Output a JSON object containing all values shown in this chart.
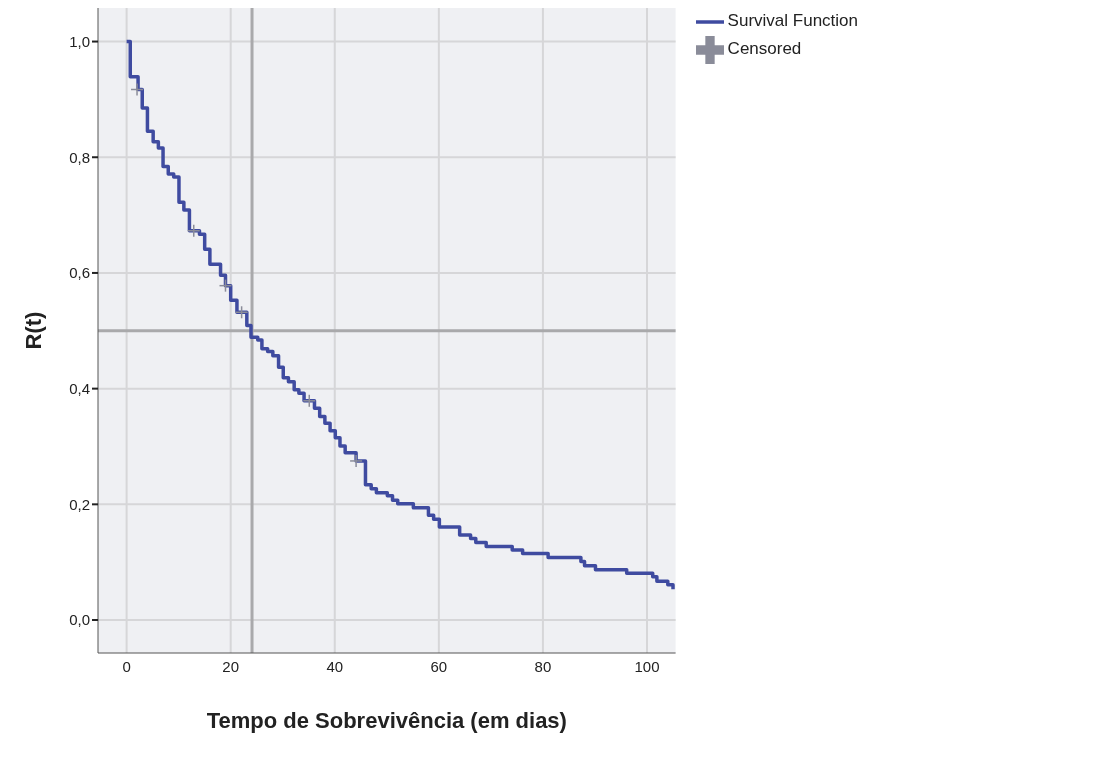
{
  "chart_data": {
    "type": "step",
    "xlabel": "Tempo de Sobrevivência (em dias)",
    "ylabel": "R(t)",
    "xlim": [
      -5.5,
      105.5
    ],
    "ylim": [
      -0.057,
      1.058
    ],
    "xticks": [
      0,
      20,
      40,
      60,
      80,
      100
    ],
    "yticks": [
      {
        "value": 0,
        "label": "0,0"
      },
      {
        "value": 0.2,
        "label": "0,2"
      },
      {
        "value": 0.4,
        "label": "0,4"
      },
      {
        "value": 0.6,
        "label": "0,6"
      },
      {
        "value": 0.8,
        "label": "0,8"
      },
      {
        "value": 1,
        "label": "1,0"
      }
    ],
    "grid": true,
    "legend": "top right",
    "series": [
      {
        "name": "Survival Function",
        "color": "#3f4ba0",
        "x": [
          0,
          0.7,
          2.2,
          3.0,
          4.0,
          5.1,
          6.1,
          7.0,
          8.0,
          9.05,
          10.06,
          11.0,
          12.07,
          14.0,
          15.0,
          16.0,
          18.05,
          19.0,
          20.0,
          21.2,
          23.1,
          23.9,
          25.2,
          26.0,
          27.1,
          28.1,
          29.2,
          30.1,
          31.1,
          32.2,
          33.1,
          34.1,
          36.1,
          37.1,
          38.1,
          39.1,
          40.1,
          41.0,
          42.0,
          44.1,
          45.9,
          47.0,
          48.0,
          50.1,
          51.1,
          52.1,
          55.1,
          58.0,
          59.0,
          60.1,
          64.0,
          66.1,
          67.1,
          69.1,
          74.1,
          76.1,
          81.0,
          87.3,
          88.0,
          90.1,
          96.1,
          101.1,
          101.9,
          104.0,
          105.0
        ],
        "values": [
          1.0,
          0.939,
          0.917,
          0.885,
          0.845,
          0.827,
          0.816,
          0.784,
          0.771,
          0.766,
          0.722,
          0.709,
          0.673,
          0.667,
          0.641,
          0.615,
          0.596,
          0.578,
          0.553,
          0.532,
          0.509,
          0.489,
          0.484,
          0.469,
          0.464,
          0.457,
          0.437,
          0.419,
          0.412,
          0.398,
          0.392,
          0.379,
          0.366,
          0.352,
          0.34,
          0.327,
          0.315,
          0.301,
          0.289,
          0.275,
          0.234,
          0.227,
          0.22,
          0.215,
          0.207,
          0.201,
          0.194,
          0.181,
          0.174,
          0.161,
          0.147,
          0.141,
          0.134,
          0.127,
          0.121,
          0.115,
          0.108,
          0.101,
          0.094,
          0.087,
          0.081,
          0.075,
          0.067,
          0.061,
          0.053
        ]
      },
      {
        "name": "Censored",
        "type": "scatter",
        "marker": "cross",
        "color": "#8a8c99",
        "x": [
          2.0,
          12.9,
          19.0,
          22.1,
          35.1,
          44.1
        ],
        "values": [
          0.917,
          0.673,
          0.578,
          0.532,
          0.379,
          0.275
        ]
      }
    ],
    "ref_lines": [
      {
        "axis": "x",
        "value": 24.1,
        "color": "#a9a9ab"
      },
      {
        "axis": "y",
        "value": 0.5,
        "color": "#a9a9ab"
      }
    ]
  }
}
